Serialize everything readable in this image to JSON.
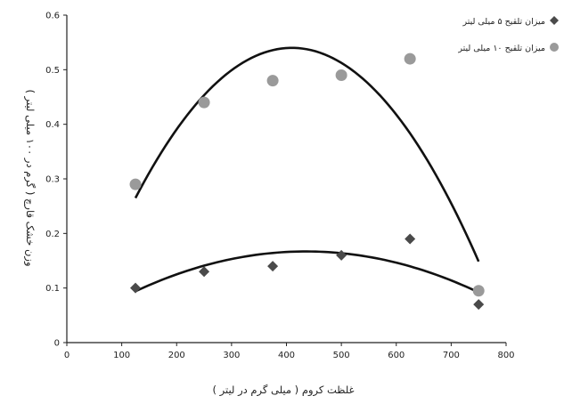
{
  "chart_data": {
    "type": "scatter",
    "xlabel": "غلظت کروم ( میلی گرم در لیتر )",
    "ylabel": "وزن خشک قارچ ( گرم در ۱۰۰ میلی لیتر )",
    "xlim": [
      0,
      800
    ],
    "ylim": [
      0,
      0.6
    ],
    "x_ticks": [
      0,
      100,
      200,
      300,
      400,
      500,
      600,
      700,
      800
    ],
    "y_ticks": [
      0,
      0.1,
      0.2,
      0.3,
      0.4,
      0.5,
      0.6
    ],
    "x_tick_labels": [
      "0",
      "100",
      "200",
      "300",
      "400",
      "500",
      "600",
      "700",
      "800"
    ],
    "y_tick_labels": [
      "0",
      "0.1",
      "0.2",
      "0.3",
      "0.4",
      "0.5",
      "0.6"
    ],
    "grid": false,
    "legend_position": "top-right",
    "series": [
      {
        "name": "میزان تلقیح ۵ میلی لیتر",
        "marker": "diamond",
        "color": "#4a4a4a",
        "x": [
          125,
          250,
          375,
          500,
          625,
          750
        ],
        "y": [
          0.1,
          0.13,
          0.14,
          0.16,
          0.19,
          0.07
        ],
        "trendline": {
          "type": "quadratic",
          "x_range": [
            125,
            750
          ],
          "points": [
            [
              125,
              0.094
            ],
            [
              437,
              0.167
            ],
            [
              750,
              0.092
            ]
          ]
        }
      },
      {
        "name": "میزان تلقیح ۱۰ میلی لیتر",
        "marker": "circle",
        "color": "#9a9a9a",
        "x": [
          125,
          250,
          375,
          500,
          625,
          750
        ],
        "y": [
          0.29,
          0.44,
          0.48,
          0.49,
          0.52,
          0.095
        ],
        "trendline": {
          "type": "quadratic",
          "x_range": [
            125,
            750
          ],
          "points": [
            [
              125,
              0.265
            ],
            [
              410,
              0.54
            ],
            [
              745,
              0.16
            ]
          ]
        }
      }
    ]
  }
}
